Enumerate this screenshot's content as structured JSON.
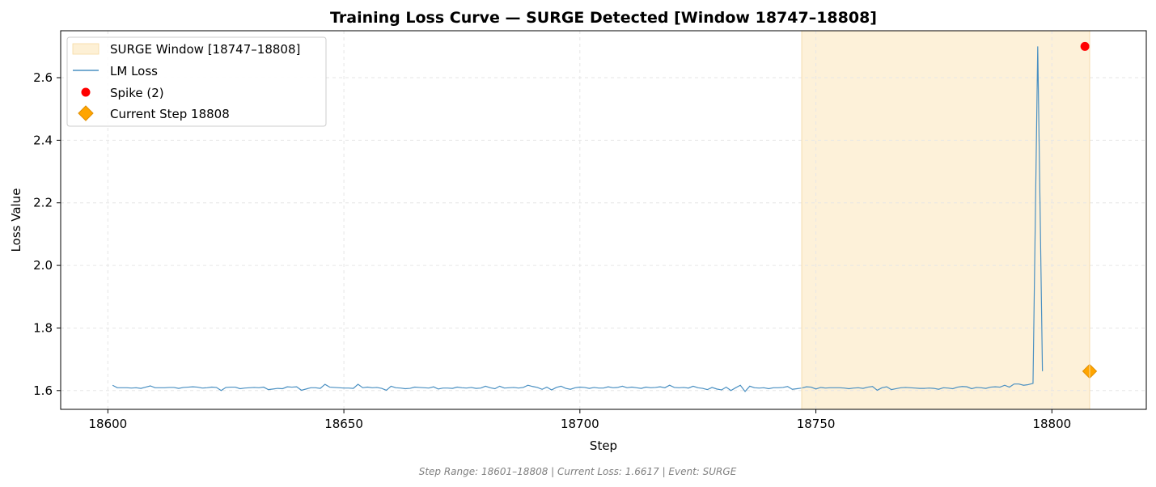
{
  "chart_data": {
    "type": "line",
    "title": "Training Loss Curve — SURGE Detected [Window 18747–18808]",
    "xlabel": "Step",
    "ylabel": "Loss Value",
    "xlim": [
      18590,
      18820
    ],
    "ylim": [
      1.54,
      2.75
    ],
    "xticks": [
      18600,
      18650,
      18700,
      18750,
      18800
    ],
    "yticks": [
      1.6,
      1.8,
      2.0,
      2.2,
      2.4,
      2.6
    ],
    "grid": true,
    "legend_position": "top-left",
    "colors": {
      "line": "#4a90c2",
      "spike": "#ff0000",
      "current": "#ffa500",
      "window": "#fdf0d5"
    },
    "surge_window": {
      "label": "SURGE Window [18747–18808]",
      "start": 18747,
      "end": 18808
    },
    "series": [
      {
        "name": "LM Loss",
        "x_start": 18601,
        "values": [
          1.617,
          1.609,
          1.609,
          1.609,
          1.608,
          1.609,
          1.607,
          1.611,
          1.615,
          1.609,
          1.609,
          1.609,
          1.61,
          1.61,
          1.607,
          1.61,
          1.611,
          1.612,
          1.611,
          1.608,
          1.609,
          1.611,
          1.61,
          1.6,
          1.61,
          1.611,
          1.611,
          1.606,
          1.608,
          1.609,
          1.61,
          1.609,
          1.611,
          1.603,
          1.605,
          1.607,
          1.606,
          1.612,
          1.611,
          1.612,
          1.601,
          1.605,
          1.609,
          1.609,
          1.607,
          1.62,
          1.611,
          1.61,
          1.609,
          1.608,
          1.608,
          1.607,
          1.62,
          1.609,
          1.611,
          1.609,
          1.61,
          1.607,
          1.601,
          1.614,
          1.609,
          1.608,
          1.606,
          1.607,
          1.611,
          1.61,
          1.609,
          1.608,
          1.612,
          1.605,
          1.608,
          1.608,
          1.607,
          1.611,
          1.609,
          1.608,
          1.61,
          1.607,
          1.608,
          1.614,
          1.609,
          1.606,
          1.614,
          1.608,
          1.609,
          1.61,
          1.608,
          1.61,
          1.617,
          1.613,
          1.61,
          1.604,
          1.611,
          1.602,
          1.61,
          1.614,
          1.607,
          1.604,
          1.609,
          1.611,
          1.61,
          1.607,
          1.61,
          1.608,
          1.608,
          1.612,
          1.609,
          1.61,
          1.614,
          1.609,
          1.611,
          1.609,
          1.607,
          1.611,
          1.609,
          1.61,
          1.612,
          1.609,
          1.617,
          1.61,
          1.609,
          1.61,
          1.608,
          1.614,
          1.609,
          1.607,
          1.603,
          1.61,
          1.605,
          1.602,
          1.611,
          1.6,
          1.609,
          1.617,
          1.597,
          1.614,
          1.609,
          1.608,
          1.609,
          1.606,
          1.609,
          1.609,
          1.61,
          1.613,
          1.604,
          1.606,
          1.608,
          1.612,
          1.611,
          1.605,
          1.61,
          1.608,
          1.609,
          1.609,
          1.609,
          1.608,
          1.606,
          1.608,
          1.609,
          1.607,
          1.611,
          1.613,
          1.601,
          1.609,
          1.612,
          1.603,
          1.606,
          1.609,
          1.61,
          1.609,
          1.608,
          1.607,
          1.607,
          1.608,
          1.607,
          1.604,
          1.609,
          1.608,
          1.606,
          1.611,
          1.613,
          1.612,
          1.606,
          1.61,
          1.609,
          1.607,
          1.611,
          1.612,
          1.611,
          1.617,
          1.611,
          1.621,
          1.621,
          1.617,
          1.619,
          1.623,
          2.7,
          1.662
        ]
      }
    ],
    "spikes": {
      "name": "Spike (2)",
      "points": [
        [
          18807,
          2.7
        ]
      ]
    },
    "current": {
      "name": "Current Step 18808",
      "step": 18808,
      "loss": 1.6617
    },
    "footer": "Step Range: 18601–18808 | Current Loss: 1.6617 | Event: SURGE"
  }
}
